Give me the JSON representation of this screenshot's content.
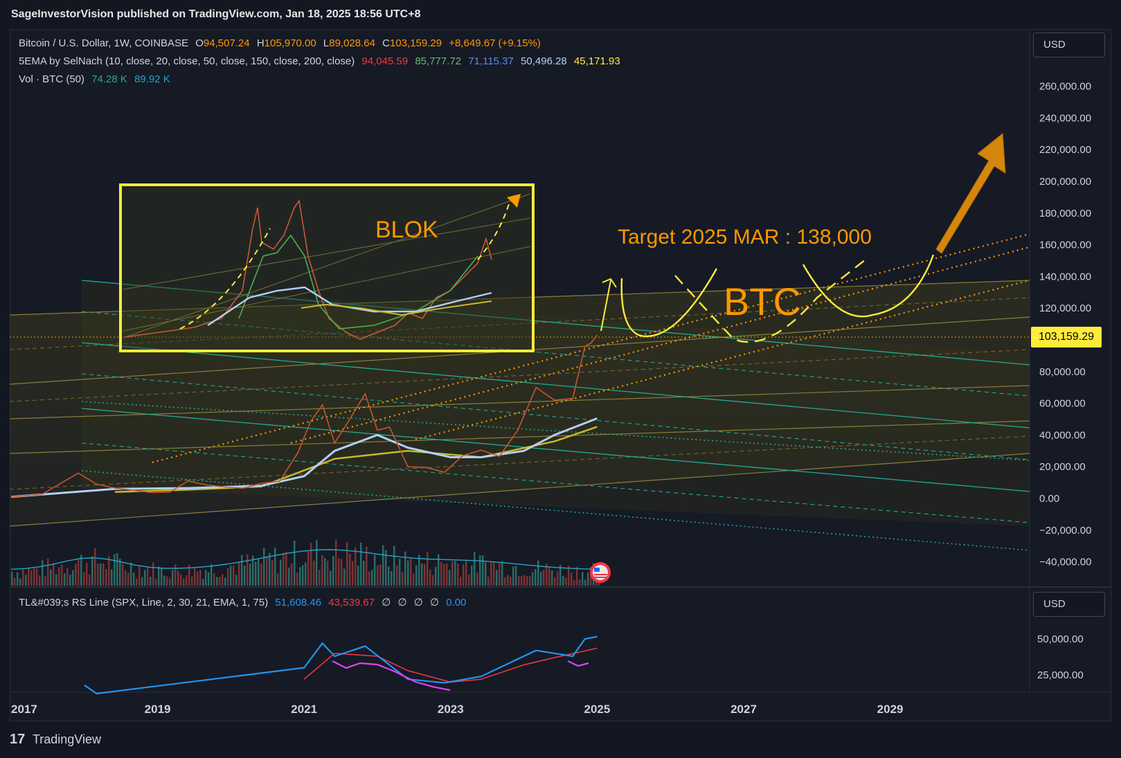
{
  "header": {
    "published": "SageInvestorVision published on TradingView.com, Jan 18, 2025 18:56 UTC+8"
  },
  "legend": {
    "symbol_line": "Bitcoin / U.S. Dollar, 1W, COINBASE",
    "o_label": "O",
    "o_value": "94,507.24",
    "h_label": "H",
    "h_value": "105,970.00",
    "l_label": "L",
    "l_value": "89,028.64",
    "c_label": "C",
    "c_value": "103,159.29",
    "change": "+8,649.67 (+9.15%)",
    "ema_label": "5EMA by SelNach (10, close, 20, close, 50, close, 150, close, 200, close)",
    "ema_values": [
      "94,045.59",
      "85,777.72",
      "71,115.37",
      "50,496.28",
      "45,171.93"
    ],
    "vol_label": "Vol · BTC (50)",
    "vol_values": [
      "74.28 K",
      "89.92 K"
    ],
    "rs_label": "TL&#039;s RS Line (SPX, Line, 2, 30, 21, EMA, 1, 75)",
    "rs_values": [
      "51,608.46",
      "43,539.67",
      "∅",
      "∅",
      "∅",
      "∅",
      "0.00"
    ]
  },
  "currency_buttons": [
    "USD",
    "USD"
  ],
  "annotations": {
    "blok": "BLOK",
    "target": "Target 2025 MAR : 138,000",
    "btc": "BTC"
  },
  "current_price_tag": "103,159.29",
  "footer": {
    "brand": "TradingView",
    "logo": "17"
  },
  "colors": {
    "background": "#131722",
    "up": "#26a69a",
    "down": "#ef5350",
    "annotation_orange": "#ff9800",
    "box_yellow": "#ffeb3b",
    "ema10": "#f23645",
    "ema20": "#4caf50",
    "ema50": "#2962ff",
    "ema150": "#b2d0f7",
    "ema200": "#c9b92c",
    "channel_cyan": "#22ab94"
  },
  "chart_data": [
    {
      "type": "line",
      "title": "Bitcoin / U.S. Dollar, 1W, COINBASE",
      "x_tick_labels": [
        "2017",
        "2019",
        "2021",
        "2023",
        "2025",
        "2027",
        "2029"
      ],
      "y_tick_labels": [
        "260,000.00",
        "240,000.00",
        "220,000.00",
        "200,000.00",
        "180,000.00",
        "160,000.00",
        "140,000.00",
        "120,000.00",
        "80,000.00",
        "60,000.00",
        "40,000.00",
        "20,000.00",
        "0.00",
        "−20,000.00",
        "−40,000.00"
      ],
      "ylim": [
        -45000,
        270000
      ],
      "series": [
        {
          "name": "Bitcoin / U.S. Dollar",
          "x": [
            "2017-01",
            "2017-06",
            "2017-12",
            "2018-03",
            "2018-06",
            "2018-12",
            "2019-03",
            "2019-06",
            "2019-09",
            "2019-12",
            "2020-03",
            "2020-06",
            "2020-09",
            "2020-12",
            "2021-02",
            "2021-04",
            "2021-06",
            "2021-08",
            "2021-11",
            "2022-01",
            "2022-03",
            "2022-06",
            "2022-09",
            "2022-12",
            "2023-03",
            "2023-06",
            "2023-09",
            "2023-12",
            "2024-03",
            "2024-06",
            "2024-09",
            "2024-11",
            "2024-12",
            "2025-01"
          ],
          "y": [
            1000,
            2500,
            16000,
            9000,
            6500,
            3700,
            4000,
            11000,
            8500,
            7200,
            6400,
            9500,
            10800,
            29000,
            48000,
            59000,
            35000,
            47000,
            66000,
            43000,
            45000,
            20000,
            19500,
            16500,
            27000,
            30500,
            26500,
            43000,
            70000,
            62000,
            63000,
            96000,
            98000,
            103159
          ]
        },
        {
          "name": "EMA 150",
          "x": [
            "2017-01",
            "2018-06",
            "2019-06",
            "2020-06",
            "2021-01",
            "2021-06",
            "2022-01",
            "2022-06",
            "2023-01",
            "2023-06",
            "2024-01",
            "2024-06",
            "2025-01"
          ],
          "y": [
            1000,
            6000,
            6500,
            8000,
            14000,
            30000,
            40000,
            32000,
            26000,
            26000,
            30000,
            40000,
            50496
          ]
        },
        {
          "name": "EMA 200",
          "x": [
            "2018-06",
            "2019-06",
            "2020-06",
            "2021-06",
            "2022-06",
            "2023-06",
            "2024-06",
            "2025-01"
          ],
          "y": [
            4000,
            5500,
            7500,
            25000,
            30000,
            26000,
            36000,
            45172
          ]
        }
      ]
    },
    {
      "type": "line",
      "title": "TL&#039;s RS Line (SPX, Line, 2, 30, 21, EMA, 1, 75)",
      "x_tick_labels": [
        "2017",
        "2019",
        "2021",
        "2023",
        "2025",
        "2027",
        "2029"
      ],
      "y_tick_labels": [
        "50,000.00",
        "25,000.00"
      ],
      "ylim": [
        10000,
        60000
      ],
      "series": [
        {
          "name": "RS Line",
          "x": [
            "2018-01",
            "2018-03",
            "2021-01",
            "2021-04",
            "2021-06",
            "2021-11",
            "2022-06",
            "2022-12",
            "2023-06",
            "2024-03",
            "2024-06",
            "2024-09",
            "2024-11",
            "2025-01"
          ],
          "y": [
            18000,
            12000,
            30000,
            47000,
            38000,
            45000,
            22000,
            19500,
            24000,
            42000,
            40000,
            38000,
            50000,
            51608
          ]
        },
        {
          "name": "RS EMA",
          "x": [
            "2021-01",
            "2021-06",
            "2022-01",
            "2022-06",
            "2023-01",
            "2023-06",
            "2024-01",
            "2024-06",
            "2025-01"
          ],
          "y": [
            22000,
            40000,
            38000,
            28000,
            20000,
            22000,
            32000,
            37000,
            43540
          ]
        }
      ]
    }
  ]
}
